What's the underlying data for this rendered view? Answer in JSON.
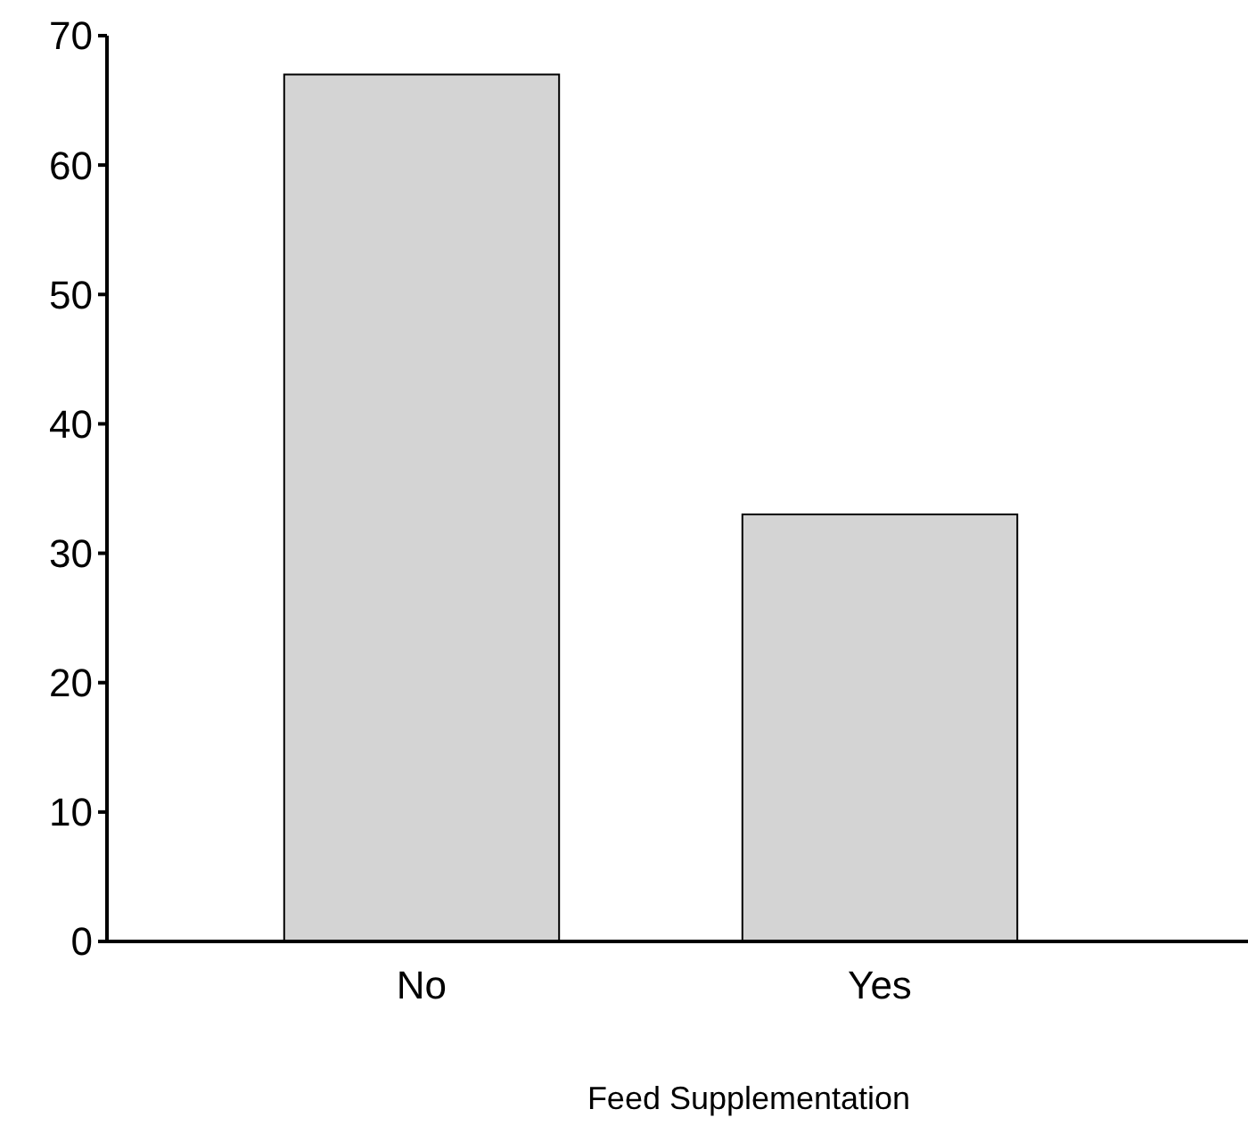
{
  "chart_data": {
    "type": "bar",
    "xlabel": "Feed Supplementation",
    "categories": [
      "No",
      "Yes"
    ],
    "values": [
      67,
      33
    ],
    "color": "#d4d4d4",
    "ylim": [
      0,
      70
    ],
    "yticks": [
      0,
      10,
      20,
      30,
      40,
      50,
      60,
      70
    ],
    "grid": false
  }
}
